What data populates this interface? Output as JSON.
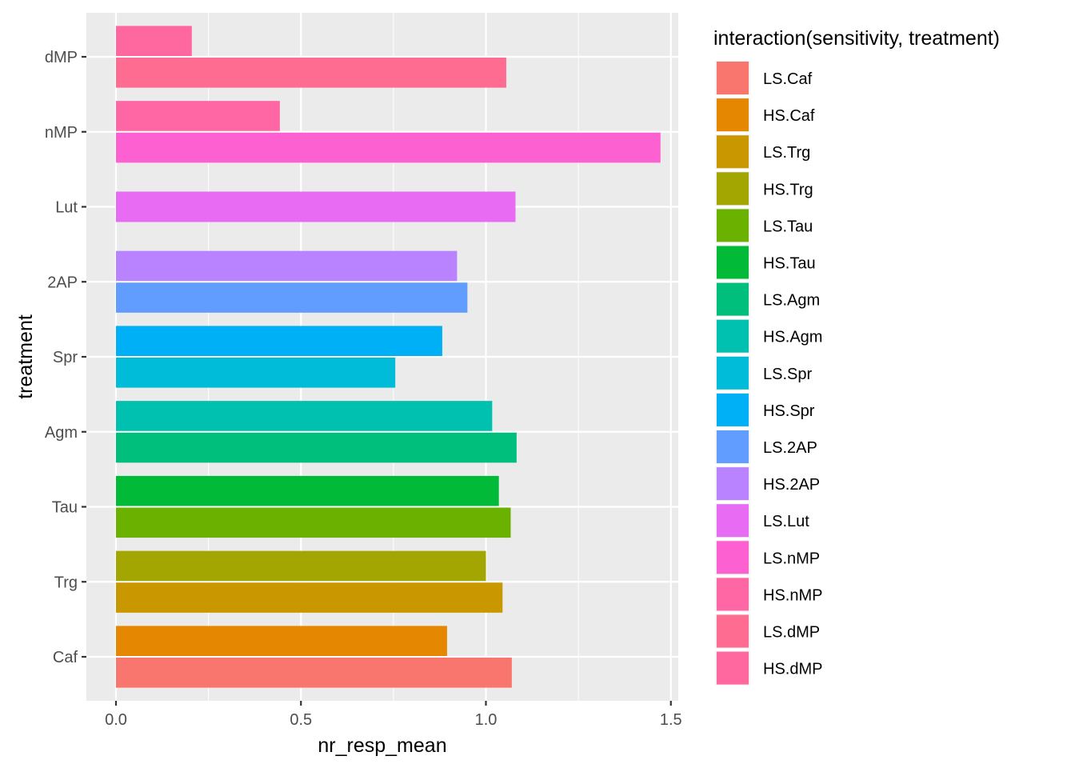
{
  "chart_data": {
    "type": "bar",
    "orientation": "horizontal",
    "title": "",
    "xlabel": "nr_resp_mean",
    "ylabel": "treatment",
    "xlim": [
      -0.08,
      1.52
    ],
    "x_ticks": [
      0.0,
      0.5,
      1.0,
      1.5
    ],
    "x_tick_labels": [
      "0.0",
      "0.5",
      "1.0",
      "1.5"
    ],
    "categories": [
      "dMP",
      "nMP",
      "Lut",
      "2AP",
      "Spr",
      "Agm",
      "Tau",
      "Trg",
      "Caf"
    ],
    "grid": true,
    "legend_position": "right",
    "legend_title": "interaction(sensitivity, treatment)",
    "series": [
      {
        "name": "LS.Caf",
        "category": "Caf",
        "value": 1.07,
        "color": "#F8766D"
      },
      {
        "name": "HS.Caf",
        "category": "Caf",
        "value": 0.895,
        "color": "#E58700"
      },
      {
        "name": "LS.Trg",
        "category": "Trg",
        "value": 1.045,
        "color": "#C99800"
      },
      {
        "name": "HS.Trg",
        "category": "Trg",
        "value": 1.0,
        "color": "#A3A500"
      },
      {
        "name": "LS.Tau",
        "category": "Tau",
        "value": 1.067,
        "color": "#6BB100"
      },
      {
        "name": "HS.Tau",
        "category": "Tau",
        "value": 1.035,
        "color": "#00BA38"
      },
      {
        "name": "LS.Agm",
        "category": "Agm",
        "value": 1.083,
        "color": "#00BF7D"
      },
      {
        "name": "HS.Agm",
        "category": "Agm",
        "value": 1.017,
        "color": "#00C0AF"
      },
      {
        "name": "LS.Spr",
        "category": "Spr",
        "value": 0.755,
        "color": "#00BCD8"
      },
      {
        "name": "HS.Spr",
        "category": "Spr",
        "value": 0.882,
        "color": "#00B0F6"
      },
      {
        "name": "LS.2AP",
        "category": "2AP",
        "value": 0.95,
        "color": "#619CFF"
      },
      {
        "name": "HS.2AP",
        "category": "2AP",
        "value": 0.922,
        "color": "#B983FF"
      },
      {
        "name": "LS.Lut",
        "category": "Lut",
        "value": 1.08,
        "color": "#E76BF3"
      },
      {
        "name": "LS.nMP",
        "category": "nMP",
        "value": 1.472,
        "color": "#FD61D1"
      },
      {
        "name": "HS.nMP",
        "category": "nMP",
        "value": 0.443,
        "color": "#FF67A4"
      },
      {
        "name": "LS.dMP",
        "category": "dMP",
        "value": 1.055,
        "color": "#FF6C91"
      },
      {
        "name": "HS.dMP",
        "category": "dMP",
        "value": 0.205,
        "color": "#FF689F"
      }
    ]
  },
  "colors": {
    "panel_background": "#EBEBEB",
    "grid_major": "#FFFFFF",
    "tick_color": "#333333"
  }
}
